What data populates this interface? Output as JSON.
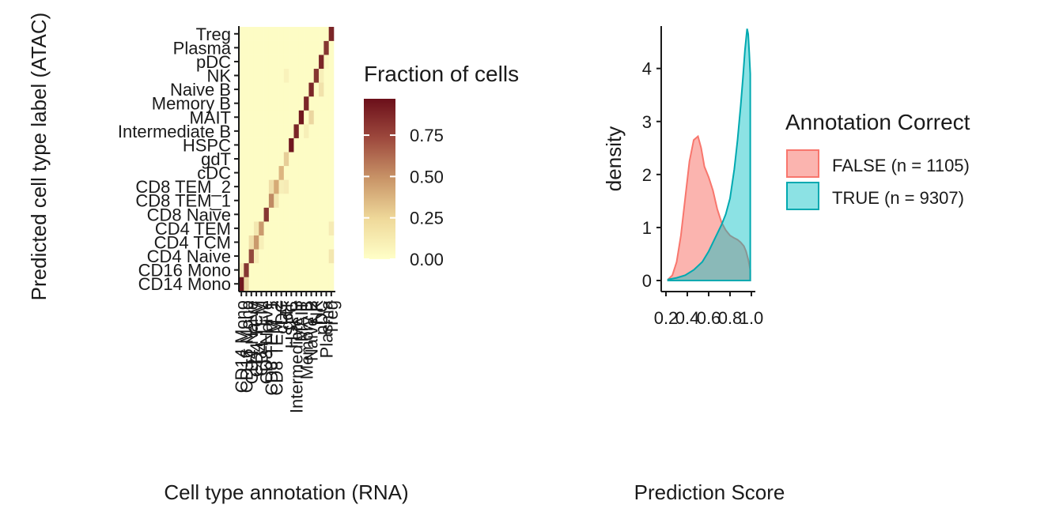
{
  "chart_data": [
    {
      "type": "heatmap",
      "xlabel": "Cell type annotation (RNA)",
      "ylabel": "Predicted cell type label (ATAC)",
      "categories": [
        "CD14 Mono",
        "CD16 Mono",
        "CD4 Naive",
        "CD4 TCM",
        "CD4 TEM",
        "CD8 Naive",
        "CD8 TEM_1",
        "CD8 TEM_2",
        "cDC",
        "gdT",
        "HSPC",
        "Intermediate B",
        "MAIT",
        "Memory B",
        "Naive B",
        "NK",
        "pDC",
        "Plasma",
        "Treg"
      ],
      "x_tick_labels": [
        "CD14 Mono",
        "CD16 Mono",
        "CD4 Naive",
        "CD4 TCM",
        "CD4 TEM",
        "CD8 Naive",
        "CD8 TEM_1",
        "CD8 TEM_2",
        "cDC",
        "gdT",
        "HSPC",
        "Intermediate B",
        "MAIT",
        "Memory B",
        "Naive B",
        "NK",
        "pDC",
        "Plasma",
        "Treg"
      ],
      "y_tick_labels": [
        "CD14 Mono",
        "CD16 Mono",
        "CD4 Naive",
        "CD4 TCM",
        "CD4 TEM",
        "CD8 Naive",
        "CD8 TEM_1",
        "CD8 TEM_2",
        "cDC",
        "gdT",
        "HSPC",
        "Intermediate B",
        "MAIT",
        "Memory B",
        "Naive B",
        "NK",
        "pDC",
        "Plasma",
        "Treg"
      ],
      "diagonal_values": [
        0.95,
        0.85,
        0.8,
        0.55,
        0.55,
        0.85,
        0.6,
        0.5,
        0.45,
        0.3,
        0.95,
        0.9,
        0.95,
        0.9,
        0.9,
        0.85,
        0.9,
        0.85,
        0.9
      ],
      "off_diagonal": [
        {
          "row": 0,
          "col": 1,
          "value": 0.25
        },
        {
          "row": 1,
          "col": 0,
          "value": 0.12
        },
        {
          "row": 2,
          "col": 3,
          "value": 0.12
        },
        {
          "row": 3,
          "col": 2,
          "value": 0.2
        },
        {
          "row": 3,
          "col": 4,
          "value": 0.1
        },
        {
          "row": 4,
          "col": 3,
          "value": 0.15
        },
        {
          "row": 4,
          "col": 18,
          "value": 0.12
        },
        {
          "row": 6,
          "col": 7,
          "value": 0.15
        },
        {
          "row": 7,
          "col": 6,
          "value": 0.2
        },
        {
          "row": 7,
          "col": 8,
          "value": 0.1
        },
        {
          "row": 7,
          "col": 9,
          "value": 0.12
        },
        {
          "row": 2,
          "col": 18,
          "value": 0.15
        },
        {
          "row": 11,
          "col": 13,
          "value": 0.1
        },
        {
          "row": 12,
          "col": 14,
          "value": 0.25
        },
        {
          "row": 15,
          "col": 9,
          "value": 0.08
        },
        {
          "row": 15,
          "col": 16,
          "value": 0.1
        },
        {
          "row": 14,
          "col": 16,
          "value": 0.18
        },
        {
          "row": 16,
          "col": 17,
          "value": 0.05
        }
      ],
      "legend": {
        "title": "Fraction of cells",
        "ticks": [
          "0.00",
          "0.25",
          "0.50",
          "0.75"
        ],
        "tick_values": [
          0,
          0.25,
          0.5,
          0.75
        ],
        "range": [
          0,
          0.97
        ]
      },
      "colors": {
        "low": "#ffffc8",
        "mid": "#d9b07a",
        "high": "#6b0f1a"
      }
    },
    {
      "type": "area",
      "xlabel": "Prediction Score",
      "ylabel": "density",
      "xlim": [
        0.2,
        1.0
      ],
      "ylim": [
        0,
        4.8
      ],
      "x_ticks": [
        "0.2",
        "0.4",
        "0.6",
        "0.8",
        "1.0"
      ],
      "x_tick_values": [
        0.2,
        0.4,
        0.6,
        0.8,
        1.0
      ],
      "y_ticks": [
        "0",
        "1",
        "2",
        "3",
        "4"
      ],
      "y_tick_values": [
        0,
        1,
        2,
        3,
        4
      ],
      "legend_placement": "right",
      "legend_title": "Annotation Correct",
      "series": [
        {
          "name": "FALSE (n = 1105)",
          "fill": "#f8766d",
          "stroke": "#f8766d",
          "x": [
            0.22,
            0.26,
            0.3,
            0.34,
            0.38,
            0.42,
            0.46,
            0.5,
            0.53,
            0.56,
            0.6,
            0.64,
            0.68,
            0.72,
            0.76,
            0.8,
            0.84,
            0.87,
            0.9,
            0.93,
            0.95,
            0.97,
            0.99
          ],
          "y": [
            0.02,
            0.1,
            0.35,
            0.85,
            1.55,
            2.25,
            2.65,
            2.72,
            2.5,
            2.15,
            1.95,
            1.7,
            1.35,
            1.1,
            0.95,
            0.85,
            0.8,
            0.77,
            0.72,
            0.65,
            0.55,
            0.4,
            0.2
          ]
        },
        {
          "name": "TRUE (n = 9307)",
          "fill": "#00bfc4",
          "stroke": "#00a9b0",
          "x": [
            0.22,
            0.3,
            0.38,
            0.46,
            0.54,
            0.6,
            0.66,
            0.72,
            0.76,
            0.8,
            0.84,
            0.87,
            0.9,
            0.92,
            0.94,
            0.96,
            0.97,
            0.98,
            0.99
          ],
          "y": [
            0.02,
            0.05,
            0.1,
            0.2,
            0.35,
            0.55,
            0.8,
            1.05,
            1.25,
            1.55,
            2.1,
            2.65,
            3.3,
            3.8,
            4.35,
            4.75,
            4.65,
            4.3,
            3.9
          ]
        }
      ]
    }
  ]
}
